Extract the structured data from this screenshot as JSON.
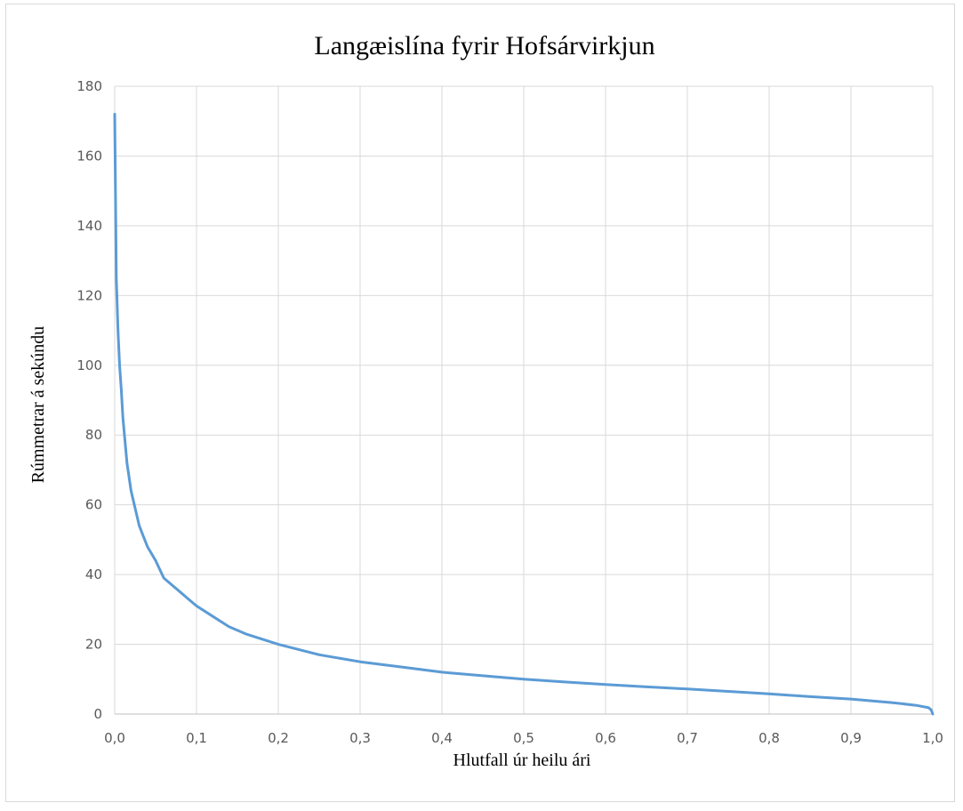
{
  "chart_data": {
    "type": "line",
    "title": "Langæislína fyrir Hofsárvirkjun",
    "xlabel": "Hlutfall úr heilu ári",
    "ylabel": "Rúmmetrar á sekúndu",
    "xlim": [
      0,
      1
    ],
    "ylim": [
      0,
      180
    ],
    "x_ticks": [
      0,
      0.1,
      0.2,
      0.3,
      0.4,
      0.5,
      0.6,
      0.7,
      0.8,
      0.9,
      1.0
    ],
    "x_tick_labels": [
      "0,0",
      "0,1",
      "0,2",
      "0,3",
      "0,4",
      "0,5",
      "0,6",
      "0,7",
      "0,8",
      "0,9",
      "1,0"
    ],
    "y_ticks": [
      0,
      20,
      40,
      60,
      80,
      100,
      120,
      140,
      160,
      180
    ],
    "y_tick_labels": [
      "0",
      "20",
      "40",
      "60",
      "80",
      "100",
      "120",
      "140",
      "160",
      "180"
    ],
    "grid": true,
    "legend": false,
    "series_color": "#5b9bd5",
    "series": [
      {
        "x": [
          0.0,
          0.002,
          0.004,
          0.006,
          0.008,
          0.01,
          0.015,
          0.02,
          0.025,
          0.03,
          0.035,
          0.04,
          0.05,
          0.06,
          0.07,
          0.08,
          0.09,
          0.1,
          0.12,
          0.14,
          0.16,
          0.18,
          0.2,
          0.25,
          0.3,
          0.35,
          0.4,
          0.45,
          0.5,
          0.55,
          0.6,
          0.65,
          0.7,
          0.75,
          0.8,
          0.85,
          0.9,
          0.95,
          0.98,
          0.995,
          0.998,
          1.0
        ],
        "y": [
          172,
          125,
          110,
          100,
          93,
          85,
          72,
          64,
          59,
          54,
          51,
          48,
          44,
          39,
          37,
          35,
          33,
          31,
          28,
          25,
          23,
          21.5,
          20,
          17,
          15,
          13.5,
          12,
          11,
          10,
          9.2,
          8.5,
          7.8,
          7.2,
          6.5,
          5.8,
          5.0,
          4.3,
          3.3,
          2.5,
          1.8,
          1.2,
          0
        ]
      }
    ]
  }
}
